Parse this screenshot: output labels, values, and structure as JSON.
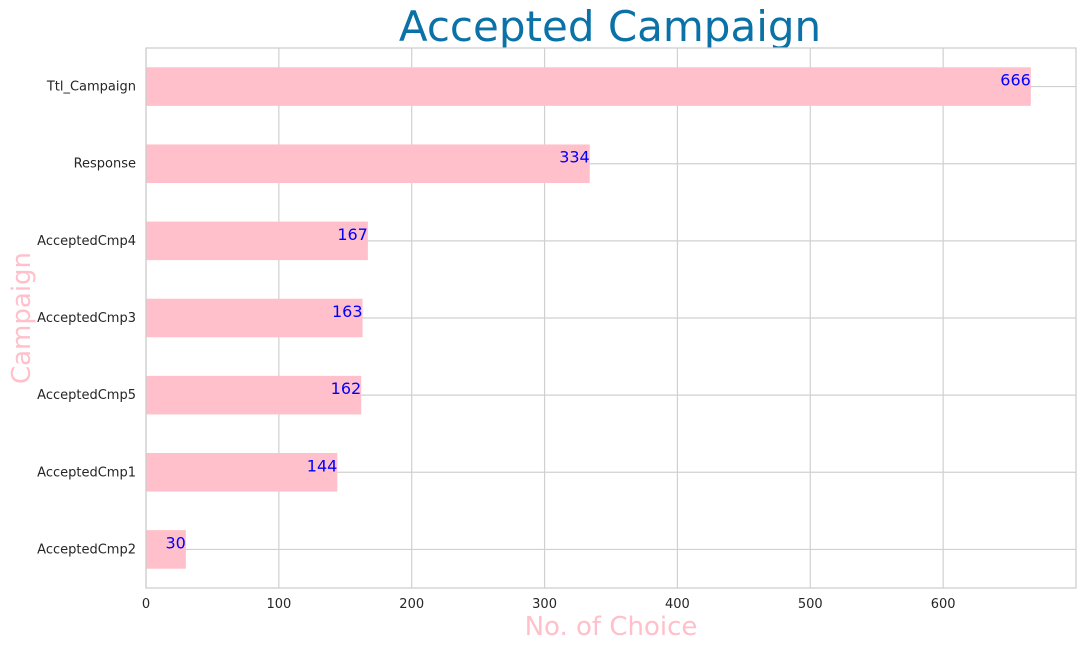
{
  "chart_data": {
    "type": "bar",
    "orientation": "horizontal",
    "title": "Accepted Campaign",
    "xlabel": "No. of Choice",
    "ylabel": "Campaign",
    "categories": [
      "Ttl_Campaign",
      "Response",
      "AcceptedCmp4",
      "AcceptedCmp3",
      "AcceptedCmp5",
      "AcceptedCmp1",
      "AcceptedCmp2"
    ],
    "values": [
      666,
      334,
      167,
      163,
      162,
      144,
      30
    ],
    "data_labels": [
      "666",
      "334",
      "167",
      "163",
      "162",
      "144",
      "30"
    ],
    "xlim": [
      0,
      700
    ],
    "xticks": [
      0,
      100,
      200,
      300,
      400,
      500,
      600
    ],
    "xtick_labels": [
      "0",
      "100",
      "200",
      "300",
      "400",
      "500",
      "600"
    ],
    "grid": true,
    "colors": {
      "bar": "#ffc0cb",
      "data_label": "#0000ff",
      "title": "#0a72a6",
      "axis_title": "#ffc0cb",
      "grid": "#d0d0d0"
    }
  }
}
